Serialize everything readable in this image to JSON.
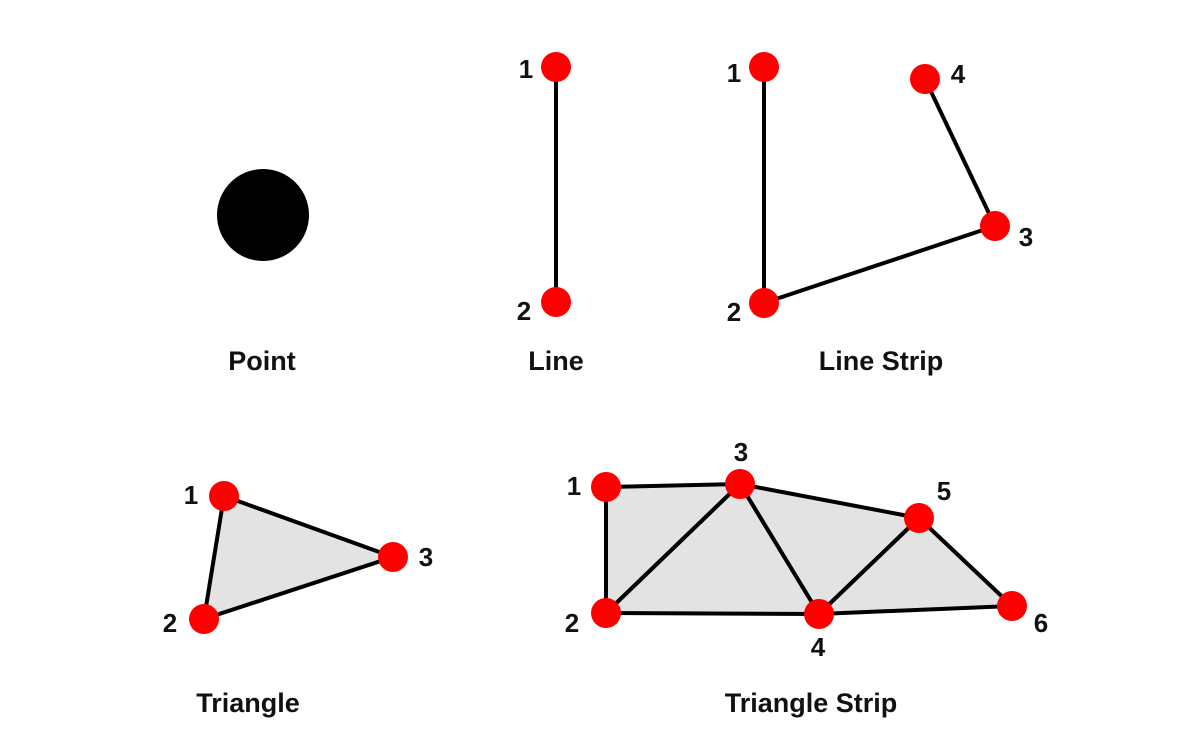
{
  "colors": {
    "vertex": "#ff0000",
    "edge": "#000000",
    "face": "#e3e3e3",
    "point": "#000000",
    "background": "#ffffff"
  },
  "primitives": {
    "point": {
      "caption": "Point"
    },
    "line": {
      "caption": "Line",
      "labels": [
        "1",
        "2"
      ]
    },
    "line_strip": {
      "caption": "Line Strip",
      "labels": [
        "1",
        "2",
        "3",
        "4"
      ]
    },
    "triangle": {
      "caption": "Triangle",
      "labels": [
        "1",
        "2",
        "3"
      ]
    },
    "triangle_strip": {
      "caption": "Triangle Strip",
      "labels": [
        "1",
        "2",
        "3",
        "4",
        "5",
        "6"
      ]
    }
  }
}
